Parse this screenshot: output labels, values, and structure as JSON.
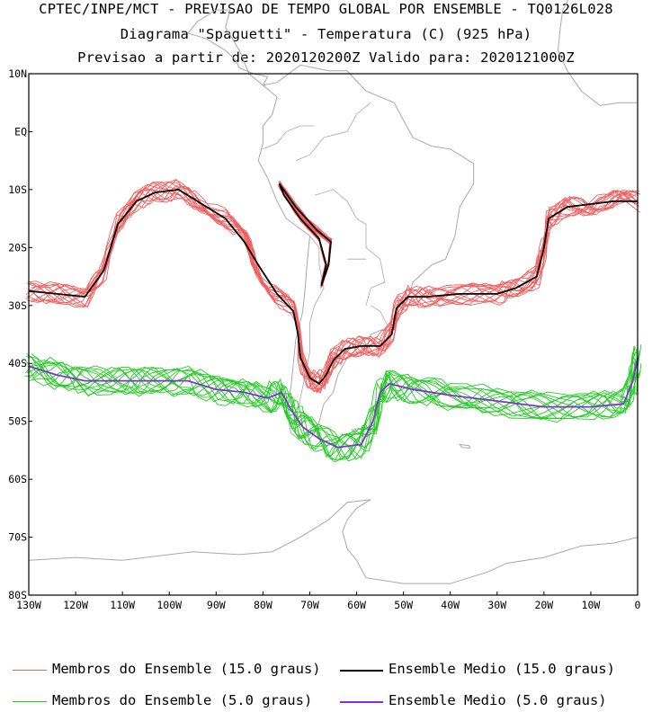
{
  "header": {
    "line1": "CPTEC/INPE/MCT - PREVISAO DE TEMPO GLOBAL POR ENSEMBLE - TQ0126L028",
    "line2": "Diagrama \"Spaguetti\" - Temperatura (C) (925 hPa)",
    "line3": "Previsao a partir de: 2020120200Z  Valido para: 2020121000Z"
  },
  "colors": {
    "member_15": "#f06060",
    "mean_15": "#000000",
    "member_5": "#22cc22",
    "mean_5": "#8a2be2",
    "land": "#a8a8a8",
    "frame": "#000000"
  },
  "legend": {
    "member_15_label": "Membros do Ensemble (15.0 graus)",
    "mean_15_label": "Ensemble Medio (15.0 graus)",
    "member_5_label": "Membros do Ensemble (5.0 graus)",
    "mean_5_label": "Ensemble Medio (5.0 graus)"
  },
  "chart_data": {
    "type": "line",
    "title": "Diagrama \"Spaguetti\" - Temperatura (C) (925 hPa)",
    "xlim": [
      -130,
      0
    ],
    "ylim": [
      -80,
      10
    ],
    "xticks": [
      -130,
      -120,
      -110,
      -100,
      -90,
      -80,
      -70,
      -60,
      -50,
      -40,
      -30,
      -20,
      -10,
      0
    ],
    "xtick_labels": [
      "130W",
      "120W",
      "110W",
      "100W",
      "90W",
      "80W",
      "70W",
      "60W",
      "50W",
      "40W",
      "30W",
      "20W",
      "10W",
      "0"
    ],
    "yticks": [
      10,
      0,
      -10,
      -20,
      -30,
      -40,
      -50,
      -60,
      -70,
      -80
    ],
    "ytick_labels": [
      "10N",
      "EQ",
      "10S",
      "20S",
      "30S",
      "40S",
      "50S",
      "60S",
      "70S",
      "80S"
    ],
    "series": [
      {
        "name": "Ensemble Medio (15.0 graus)",
        "color": "#000000",
        "segments": [
          [
            [
              -130,
              -27.5
            ],
            [
              -124,
              -28
            ],
            [
              -118,
              -28.5
            ],
            [
              -114,
              -24
            ],
            [
              -111,
              -16
            ],
            [
              -107,
              -12
            ],
            [
              -103,
              -10.5
            ],
            [
              -98,
              -10
            ],
            [
              -94,
              -12
            ],
            [
              -88,
              -15
            ],
            [
              -84,
              -19
            ],
            [
              -81,
              -23
            ],
            [
              -77,
              -28
            ],
            [
              -73.5,
              -31
            ],
            [
              -72.5,
              -35
            ],
            [
              -72,
              -39
            ],
            [
              -70,
              -42.5
            ],
            [
              -68,
              -43.5
            ],
            [
              -66.5,
              -42
            ],
            [
              -65,
              -39.5
            ],
            [
              -62.5,
              -37.5
            ],
            [
              -59,
              -37
            ],
            [
              -55,
              -37
            ],
            [
              -52.5,
              -35
            ],
            [
              -51.5,
              -30.5
            ],
            [
              -49,
              -28.5
            ],
            [
              -45,
              -28.5
            ],
            [
              -38,
              -28
            ],
            [
              -30,
              -28
            ],
            [
              -26,
              -27
            ],
            [
              -21.5,
              -25
            ],
            [
              -20,
              -20
            ],
            [
              -19,
              -15
            ],
            [
              -15,
              -13
            ],
            [
              -10,
              -12.5
            ],
            [
              -5,
              -12
            ],
            [
              0,
              -12
            ]
          ],
          [
            [
              -76.5,
              -9
            ],
            [
              -73,
              -13
            ],
            [
              -68.5,
              -17
            ],
            [
              -65.5,
              -19
            ],
            [
              -66,
              -23
            ],
            [
              -67.5,
              -26.5
            ],
            [
              -66.5,
              -23
            ],
            [
              -68,
              -18.5
            ],
            [
              -72,
              -15
            ],
            [
              -75.5,
              -11
            ],
            [
              -76.5,
              -9
            ]
          ]
        ]
      },
      {
        "name": "Ensemble Medio (5.0 graus)",
        "color": "#8a2be2",
        "segments": [
          [
            [
              -130,
              -40.5
            ],
            [
              -124,
              -42
            ],
            [
              -118,
              -43
            ],
            [
              -110,
              -43
            ],
            [
              -104,
              -43
            ],
            [
              -96,
              -43
            ],
            [
              -90,
              -44.5
            ],
            [
              -84,
              -45
            ],
            [
              -79,
              -46
            ],
            [
              -76,
              -45
            ],
            [
              -74,
              -48
            ],
            [
              -71.5,
              -51
            ],
            [
              -68,
              -53
            ],
            [
              -64,
              -54.5
            ],
            [
              -59,
              -54
            ],
            [
              -56.5,
              -50
            ],
            [
              -55,
              -45
            ],
            [
              -53,
              -43.5
            ],
            [
              -48,
              -44.5
            ],
            [
              -40,
              -45.5
            ],
            [
              -30,
              -46.5
            ],
            [
              -20,
              -47.5
            ],
            [
              -10,
              -47.5
            ],
            [
              -3,
              -47
            ],
            [
              -1,
              -43
            ],
            [
              0,
              -39
            ]
          ]
        ]
      }
    ]
  }
}
